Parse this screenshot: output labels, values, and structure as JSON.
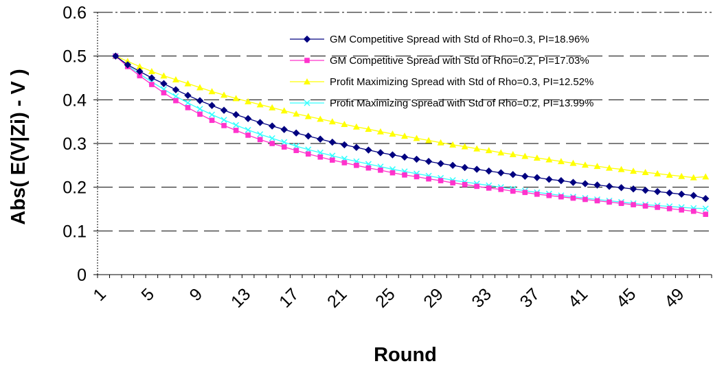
{
  "chart_data": {
    "type": "line",
    "title": "",
    "xlabel": "Round",
    "ylabel": "Abs( E(V|Zi) - V )",
    "xlim": [
      1,
      51
    ],
    "ylim": [
      0,
      0.6
    ],
    "x_tick_labels": [
      "1",
      "5",
      "9",
      "13",
      "17",
      "21",
      "25",
      "29",
      "33",
      "37",
      "41",
      "45",
      "49"
    ],
    "y_tick_labels": [
      "0",
      "0.1",
      "0.2",
      "0.3",
      "0.4",
      "0.5",
      "0.6"
    ],
    "grid": "horizontal dashed",
    "legend_position": "top-right",
    "x": [
      2,
      3,
      4,
      5,
      6,
      7,
      8,
      9,
      10,
      11,
      12,
      13,
      14,
      15,
      16,
      17,
      18,
      19,
      20,
      21,
      22,
      23,
      24,
      25,
      26,
      27,
      28,
      29,
      30,
      31,
      32,
      33,
      34,
      35,
      36,
      37,
      38,
      39,
      40,
      41,
      42,
      43,
      44,
      45,
      46,
      47,
      48,
      49,
      50,
      51
    ],
    "series": [
      {
        "name": "GM Competitive Spread with Std of Rho=0.3, PI=18.96%",
        "color": "#000080",
        "marker": "diamond",
        "values": [
          0.5,
          0.48,
          0.465,
          0.45,
          0.437,
          0.423,
          0.41,
          0.398,
          0.387,
          0.376,
          0.366,
          0.357,
          0.348,
          0.34,
          0.332,
          0.324,
          0.317,
          0.31,
          0.303,
          0.297,
          0.291,
          0.285,
          0.279,
          0.274,
          0.269,
          0.264,
          0.259,
          0.254,
          0.25,
          0.245,
          0.241,
          0.237,
          0.233,
          0.229,
          0.225,
          0.222,
          0.218,
          0.215,
          0.211,
          0.208,
          0.205,
          0.202,
          0.199,
          0.196,
          0.193,
          0.19,
          0.187,
          0.184,
          0.181,
          0.174
        ]
      },
      {
        "name": "GM Competitive Spread with Std of Rho=0.2, PI=17.03%",
        "color": "#ff33cc",
        "marker": "square",
        "values": [
          0.5,
          0.476,
          0.455,
          0.435,
          0.416,
          0.398,
          0.382,
          0.367,
          0.353,
          0.341,
          0.33,
          0.319,
          0.309,
          0.3,
          0.292,
          0.284,
          0.276,
          0.269,
          0.262,
          0.256,
          0.25,
          0.244,
          0.239,
          0.233,
          0.228,
          0.224,
          0.219,
          0.215,
          0.21,
          0.206,
          0.202,
          0.198,
          0.195,
          0.191,
          0.188,
          0.184,
          0.181,
          0.178,
          0.175,
          0.172,
          0.169,
          0.166,
          0.163,
          0.16,
          0.157,
          0.154,
          0.151,
          0.148,
          0.145,
          0.138
        ]
      },
      {
        "name": "Profit Maximizing Spread with Std of Rho=0.3, PI=12.52%",
        "color": "#ffff00",
        "marker": "triangle",
        "values": [
          0.5,
          0.488,
          0.476,
          0.465,
          0.455,
          0.446,
          0.437,
          0.428,
          0.419,
          0.411,
          0.403,
          0.396,
          0.389,
          0.382,
          0.375,
          0.368,
          0.362,
          0.356,
          0.35,
          0.344,
          0.338,
          0.333,
          0.327,
          0.322,
          0.317,
          0.312,
          0.307,
          0.302,
          0.297,
          0.293,
          0.288,
          0.284,
          0.279,
          0.275,
          0.271,
          0.267,
          0.263,
          0.259,
          0.255,
          0.251,
          0.248,
          0.244,
          0.241,
          0.237,
          0.234,
          0.231,
          0.228,
          0.225,
          0.222,
          0.224
        ]
      },
      {
        "name": "Profit Maximizing Spread with Std of Rho=0.2, PI=13.99%",
        "color": "#33ffff",
        "marker": "x",
        "values": [
          0.5,
          0.478,
          0.459,
          0.441,
          0.424,
          0.408,
          0.393,
          0.379,
          0.366,
          0.354,
          0.342,
          0.331,
          0.321,
          0.312,
          0.303,
          0.294,
          0.286,
          0.279,
          0.272,
          0.265,
          0.259,
          0.253,
          0.247,
          0.241,
          0.236,
          0.231,
          0.226,
          0.221,
          0.216,
          0.212,
          0.208,
          0.204,
          0.2,
          0.196,
          0.192,
          0.188,
          0.185,
          0.181,
          0.178,
          0.175,
          0.172,
          0.169,
          0.166,
          0.163,
          0.16,
          0.158,
          0.156,
          0.154,
          0.152,
          0.151
        ]
      }
    ]
  }
}
